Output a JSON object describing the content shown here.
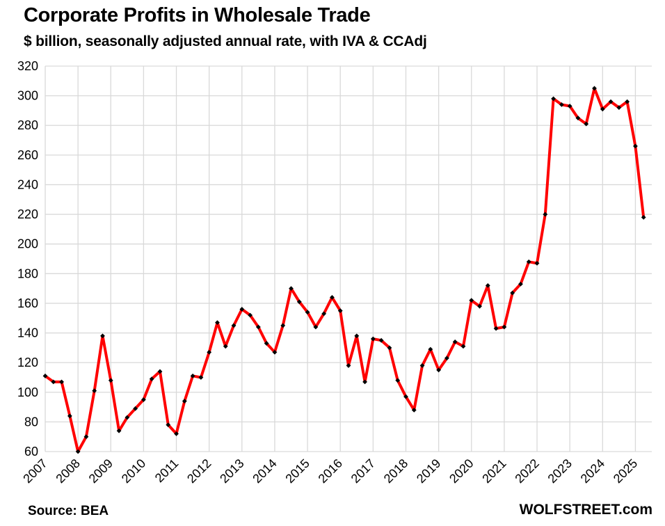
{
  "chart_data": {
    "type": "line",
    "title": "Corporate Profits in Wholesale Trade",
    "subtitle": "$ billion, seasonally adjusted annual rate, with IVA & CCAdj",
    "xlabel": "",
    "ylabel": "",
    "ylim": [
      60,
      320
    ],
    "yticks": [
      60,
      80,
      100,
      120,
      140,
      160,
      180,
      200,
      220,
      240,
      260,
      280,
      300,
      320
    ],
    "xlim": [
      2007,
      2025.5
    ],
    "xticks": [
      "2007",
      "2008",
      "2009",
      "2010",
      "2011",
      "2012",
      "2013",
      "2014",
      "2015",
      "2016",
      "2017",
      "2018",
      "2019",
      "2020",
      "2021",
      "2022",
      "2023",
      "2024",
      "2025"
    ],
    "grid": true,
    "line_color": "#ff0000",
    "marker_color": "#000000",
    "series": [
      {
        "x": [
          2007.0,
          2007.25,
          2007.5,
          2007.75,
          2008.0,
          2008.25,
          2008.5,
          2008.75,
          2009.0,
          2009.25,
          2009.5,
          2009.75,
          2010.0,
          2010.25,
          2010.5,
          2010.75,
          2011.0,
          2011.25,
          2011.5,
          2011.75,
          2012.0,
          2012.25,
          2012.5,
          2012.75,
          2013.0,
          2013.25,
          2013.5,
          2013.75,
          2014.0,
          2014.25,
          2014.5,
          2014.75,
          2015.0,
          2015.25,
          2015.5,
          2015.75,
          2016.0,
          2016.25,
          2016.5,
          2016.75,
          2017.0,
          2017.25,
          2017.5,
          2017.75,
          2018.0,
          2018.25,
          2018.5,
          2018.75,
          2019.0,
          2019.25,
          2019.5,
          2019.75,
          2020.0,
          2020.25,
          2020.5,
          2020.75,
          2021.0,
          2021.25,
          2021.5,
          2021.75,
          2022.0,
          2022.25,
          2022.5,
          2022.75,
          2023.0,
          2023.25,
          2023.5,
          2023.75,
          2024.0,
          2024.25,
          2024.5,
          2024.75,
          2025.0,
          2025.25
        ],
        "values": [
          111,
          107,
          107,
          84,
          60,
          70,
          101,
          138,
          108,
          74,
          83,
          89,
          95,
          109,
          114,
          78,
          72,
          94,
          111,
          110,
          127,
          147,
          131,
          145,
          156,
          152,
          144,
          133,
          127,
          145,
          170,
          161,
          154,
          144,
          153,
          164,
          155,
          118,
          138,
          107,
          136,
          135,
          130,
          108,
          97,
          88,
          118,
          129,
          115,
          123,
          134,
          131,
          162,
          158,
          172,
          143,
          144,
          167,
          173,
          188,
          187,
          220,
          298,
          294,
          293,
          285,
          281,
          305,
          291,
          296,
          292,
          296,
          266,
          218
        ]
      }
    ]
  },
  "footer": {
    "source": "Source: BEA",
    "brand": "WOLFSTREET.com"
  }
}
